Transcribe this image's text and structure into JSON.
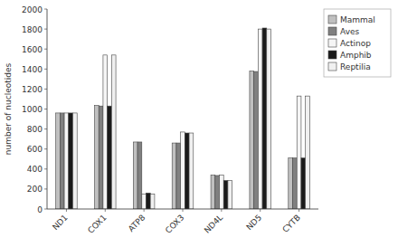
{
  "chart_data": {
    "type": "bar",
    "categories": [
      "ND1",
      "COX1",
      "ATP8",
      "COX3",
      "ND4L",
      "ND5",
      "CYTB"
    ],
    "series": [
      {
        "name": "Mammal",
        "color": "#c0c0c0",
        "values": [
          960,
          1035,
          670,
          660,
          340,
          1380,
          510
        ]
      },
      {
        "name": "Aves",
        "color": "#808080",
        "values": [
          960,
          1030,
          670,
          660,
          335,
          1375,
          510
        ]
      },
      {
        "name": "Actinop",
        "color": "#f5f5f5",
        "values": [
          960,
          1540,
          150,
          770,
          340,
          1800,
          1130
        ]
      },
      {
        "name": "Amphib",
        "color": "#1a1a1a",
        "values": [
          960,
          1030,
          160,
          760,
          285,
          1810,
          510
        ]
      },
      {
        "name": "Reptilia",
        "color": "#f0f0f0",
        "values": [
          960,
          1540,
          150,
          760,
          285,
          1800,
          1130
        ]
      }
    ],
    "ylim": [
      0,
      2000
    ],
    "yticks": [
      0,
      200,
      400,
      600,
      800,
      1000,
      1200,
      1400,
      1600,
      1800,
      2000
    ],
    "y_label": "number of nucleotides",
    "grid": false,
    "legend": "upper right"
  }
}
